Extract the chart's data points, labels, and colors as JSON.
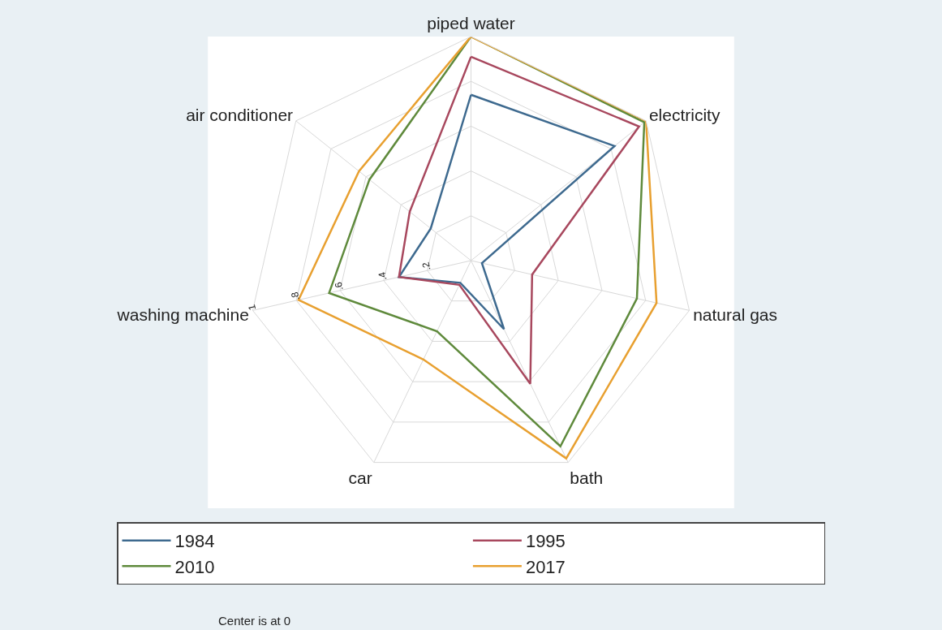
{
  "chart_data": {
    "type": "radar",
    "categories": [
      "piped water",
      "electricity",
      "natural gas",
      "bath",
      "car",
      "washing machine",
      "air conditioner"
    ],
    "series": [
      {
        "name": "1984",
        "color": "#3e6a8f",
        "values": [
          0.74,
          0.82,
          0.05,
          0.34,
          0.11,
          0.33,
          0.23
        ]
      },
      {
        "name": "1995",
        "color": "#a8485e",
        "values": [
          0.91,
          0.96,
          0.28,
          0.61,
          0.12,
          0.33,
          0.35
        ]
      },
      {
        "name": "2010",
        "color": "#5f8a3c",
        "values": [
          1.0,
          0.99,
          0.76,
          0.92,
          0.35,
          0.65,
          0.58
        ]
      },
      {
        "name": "2017",
        "color": "#e8a030",
        "values": [
          1.0,
          1.0,
          0.85,
          0.98,
          0.49,
          0.79,
          0.64
        ]
      }
    ],
    "ylim": [
      0,
      1
    ],
    "yticks": [
      {
        "value": 0.2,
        "label": ".2"
      },
      {
        "value": 0.4,
        "label": ".4"
      },
      {
        "value": 0.6,
        "label": ".6"
      },
      {
        "value": 0.8,
        "label": ".8"
      },
      1
    ],
    "grid": true,
    "legend": "bottom",
    "marker": "none",
    "line_style": "solid",
    "annotations": [
      "Center is at 0"
    ]
  }
}
